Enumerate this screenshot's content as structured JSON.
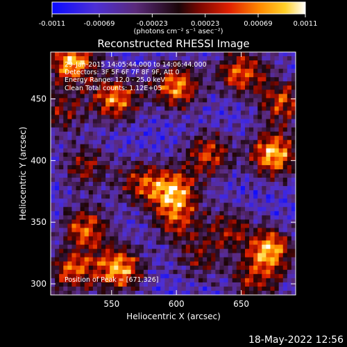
{
  "colorbar": {
    "tick_labels": [
      "-0.0011",
      "-0.00069",
      "-0.00023",
      "0.00023",
      "0.00069",
      "0.0011"
    ],
    "tick_values": [
      -0.0011,
      -0.00069,
      -0.00023,
      0.00023,
      0.00069,
      0.0011
    ],
    "range": [
      -0.0011,
      0.0011
    ],
    "unit_label": "(photons cm⁻² s⁻¹ asec⁻²)"
  },
  "chart_data": {
    "type": "heatmap",
    "title": "Reconstructed RHESSI Image",
    "xlabel": "Heliocentric X (arcsec)",
    "ylabel": "Heliocentric Y (arcsec)",
    "xlim": [
      503,
      692
    ],
    "ylim": [
      291,
      488
    ],
    "x_ticks": [
      550,
      600,
      650
    ],
    "y_ticks": [
      300,
      350,
      400,
      450
    ],
    "colormap": "red-temperature (blue-purple negative, red-yellow-white positive)",
    "annotations": [
      "29-Jan-2015 14:05:44.000 to 14:06:44.000",
      "Detectors: 3F 5F 6F 7F 8F 9F, Att 0",
      "Energy Range: 12.0 - 25.0 keV",
      "Clean     Total counts: 1.12E+05"
    ],
    "peak_label": "Position of Peak = [671,326]",
    "peak": [
      671,
      326
    ],
    "bright_sources": [
      {
        "x": 520,
        "y": 480,
        "level": 0.95
      },
      {
        "x": 553,
        "y": 450,
        "level": 0.85
      },
      {
        "x": 600,
        "y": 460,
        "level": 0.88
      },
      {
        "x": 650,
        "y": 472,
        "level": 0.82
      },
      {
        "x": 682,
        "y": 448,
        "level": 0.7
      },
      {
        "x": 675,
        "y": 405,
        "level": 1.0
      },
      {
        "x": 625,
        "y": 405,
        "level": 0.7
      },
      {
        "x": 598,
        "y": 375,
        "level": 0.9
      },
      {
        "x": 572,
        "y": 382,
        "level": 0.6
      },
      {
        "x": 530,
        "y": 395,
        "level": 0.55
      },
      {
        "x": 512,
        "y": 440,
        "level": 0.5
      },
      {
        "x": 530,
        "y": 345,
        "level": 0.75
      },
      {
        "x": 556,
        "y": 312,
        "level": 0.95
      },
      {
        "x": 520,
        "y": 310,
        "level": 0.7
      },
      {
        "x": 600,
        "y": 350,
        "level": 0.55
      },
      {
        "x": 640,
        "y": 345,
        "level": 0.5
      },
      {
        "x": 671,
        "y": 326,
        "level": 1.0
      },
      {
        "x": 660,
        "y": 300,
        "level": 0.5
      },
      {
        "x": 618,
        "y": 320,
        "level": 0.45
      }
    ]
  },
  "footer": {
    "timestamp": "18-May-2022 12:56"
  }
}
